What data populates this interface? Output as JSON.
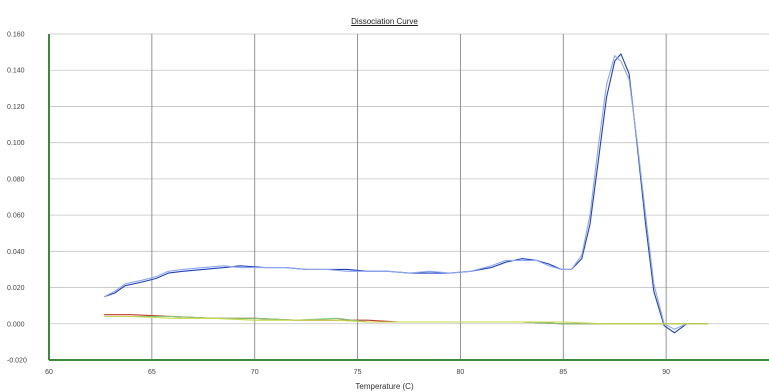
{
  "chart_data": {
    "type": "line",
    "title": "Dissociation Curve",
    "xlabel": "Temperature (C)",
    "ylabel": "",
    "xlim": [
      60,
      95
    ],
    "ylim": [
      -0.02,
      0.16
    ],
    "x_ticks": [
      60,
      65,
      70,
      75,
      80,
      85,
      90
    ],
    "y_ticks": [
      -0.02,
      0.0,
      0.02,
      0.04,
      0.06,
      0.08,
      0.1,
      0.12,
      0.14,
      0.16
    ],
    "y_tick_labels": [
      "-0.020",
      "0.000",
      "0.020",
      "0.040",
      "0.060",
      "0.080",
      "0.100",
      "0.120",
      "0.140",
      "0.160"
    ],
    "grid": true,
    "legend": "none",
    "series": [
      {
        "color": "#1f3fbf",
        "x": [
          62.7,
          63.2,
          63.7,
          64.5,
          65.2,
          65.8,
          66.5,
          67.5,
          68.5,
          69.3,
          70.5,
          71.5,
          72.5,
          73.5,
          74.5,
          75.5,
          76.5,
          77.5,
          78.5,
          79.5,
          80.5,
          81.5,
          82.2,
          83.0,
          83.7,
          84.3,
          84.9,
          85.4,
          85.9,
          86.3,
          86.7,
          87.1,
          87.5,
          87.8,
          88.2,
          88.6,
          89.0,
          89.4,
          89.9,
          90.4,
          91.0,
          92.0
        ],
        "values": [
          0.015,
          0.017,
          0.021,
          0.023,
          0.025,
          0.028,
          0.029,
          0.03,
          0.031,
          0.032,
          0.031,
          0.031,
          0.03,
          0.03,
          0.03,
          0.029,
          0.029,
          0.028,
          0.028,
          0.028,
          0.029,
          0.031,
          0.034,
          0.036,
          0.035,
          0.033,
          0.03,
          0.03,
          0.036,
          0.055,
          0.09,
          0.125,
          0.145,
          0.149,
          0.138,
          0.098,
          0.055,
          0.018,
          -0.001,
          -0.005,
          0.0,
          0.0
        ]
      },
      {
        "color": "#8fa6ee",
        "x": [
          62.7,
          63.2,
          63.7,
          64.5,
          65.2,
          65.8,
          66.5,
          67.5,
          68.5,
          69.3,
          70.5,
          71.5,
          72.5,
          73.5,
          74.5,
          75.5,
          76.5,
          77.5,
          78.5,
          79.5,
          80.5,
          81.5,
          82.2,
          83.0,
          83.7,
          84.3,
          84.9,
          85.4,
          85.9,
          86.3,
          86.7,
          87.1,
          87.5,
          87.8,
          88.2,
          88.6,
          89.0,
          89.4,
          89.9,
          90.4,
          91.0,
          92.0
        ],
        "values": [
          0.015,
          0.018,
          0.022,
          0.024,
          0.026,
          0.029,
          0.03,
          0.031,
          0.032,
          0.031,
          0.031,
          0.031,
          0.03,
          0.03,
          0.029,
          0.029,
          0.029,
          0.028,
          0.029,
          0.028,
          0.029,
          0.032,
          0.035,
          0.035,
          0.035,
          0.032,
          0.03,
          0.03,
          0.038,
          0.06,
          0.098,
          0.132,
          0.148,
          0.145,
          0.135,
          0.1,
          0.06,
          0.022,
          0.0,
          -0.003,
          0.0,
          0.0
        ]
      },
      {
        "color": "#c0392b",
        "x": [
          62.7,
          64.0,
          66.0,
          68.0,
          70.0,
          72.0,
          74.0,
          75.5,
          77.0,
          79.0,
          81.0,
          83.0,
          85.0,
          87.0,
          89.0,
          91.0,
          92.0
        ],
        "values": [
          0.005,
          0.005,
          0.004,
          0.003,
          0.003,
          0.002,
          0.002,
          0.002,
          0.001,
          0.001,
          0.001,
          0.001,
          0.0,
          0.0,
          0.0,
          0.0,
          0.0
        ]
      },
      {
        "color": "#7dc47d",
        "x": [
          62.7,
          64.0,
          66.0,
          68.0,
          70.0,
          72.0,
          74.0,
          75.5,
          77.0,
          79.0,
          81.0,
          83.0,
          85.0,
          87.0,
          89.0,
          91.0,
          92.0
        ],
        "values": [
          0.004,
          0.004,
          0.004,
          0.003,
          0.003,
          0.002,
          0.003,
          0.001,
          0.001,
          0.001,
          0.001,
          0.001,
          0.0,
          0.0,
          0.0,
          0.0,
          0.0
        ]
      },
      {
        "color": "#c8d84a",
        "x": [
          62.7,
          64.0,
          66.0,
          68.0,
          70.0,
          72.0,
          74.0,
          75.5,
          77.0,
          79.0,
          81.0,
          83.0,
          85.0,
          87.0,
          89.0,
          91.0,
          92.0
        ],
        "values": [
          0.004,
          0.004,
          0.003,
          0.003,
          0.002,
          0.002,
          0.002,
          0.001,
          0.001,
          0.001,
          0.001,
          0.001,
          0.001,
          0.0,
          0.0,
          0.0,
          0.0
        ]
      }
    ]
  }
}
